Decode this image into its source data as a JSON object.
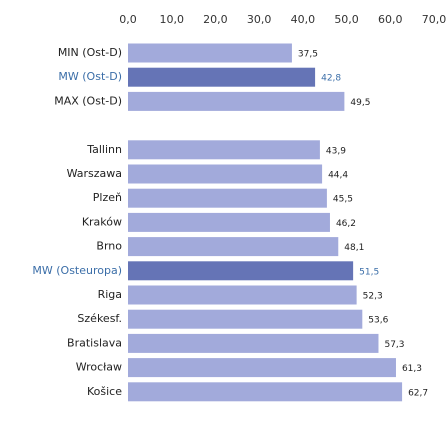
{
  "chart_data": {
    "type": "barh",
    "categories": [
      "MIN (Ost-D)",
      "MW (Ost-D)",
      "MAX (Ost-D)",
      null,
      "Tallinn",
      "Warszawa",
      "Plzeň",
      "Kraków",
      "Brno",
      "MW (Osteuropa)",
      "Riga",
      "Székesf.",
      "Bratislava",
      "Wrocław",
      "Košice"
    ],
    "values": [
      37.5,
      42.8,
      49.5,
      null,
      43.9,
      44.4,
      45.5,
      46.2,
      48.1,
      51.5,
      52.3,
      53.6,
      57.3,
      61.3,
      62.7
    ],
    "value_labels": [
      "37,5",
      "42,8",
      "49,5",
      null,
      "43,9",
      "44,4",
      "45,5",
      "46,2",
      "48,1",
      "51,5",
      "52,3",
      "53,6",
      "57,3",
      "61,3",
      "62,7"
    ],
    "colors": [
      "#a2aadb",
      "#6574b6",
      "#a2aadb",
      null,
      "#a2aadb",
      "#a2aadb",
      "#a2aadb",
      "#a2aadb",
      "#a2aadb",
      "#6574b6",
      "#a2aadb",
      "#a2aadb",
      "#a2aadb",
      "#a2aadb",
      "#a2aadb"
    ],
    "label_colors": [
      "#222222",
      "#3b6ea8",
      "#222222",
      null,
      "#222222",
      "#222222",
      "#222222",
      "#222222",
      "#222222",
      "#3b6ea8",
      "#222222",
      "#222222",
      "#222222",
      "#222222",
      "#222222"
    ],
    "xlim": [
      0,
      70
    ],
    "xticks": [
      {
        "value": 0,
        "label": "0,0"
      },
      {
        "value": 10,
        "label": "10,0"
      },
      {
        "value": 20,
        "label": "20,0"
      },
      {
        "value": 30,
        "label": "30,0"
      },
      {
        "value": 40,
        "label": "40,0"
      },
      {
        "value": 50,
        "label": "50,0"
      },
      {
        "value": 60,
        "label": "60,0"
      },
      {
        "value": 70,
        "label": "70,0"
      }
    ]
  }
}
